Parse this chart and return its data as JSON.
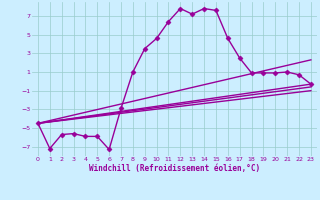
{
  "xlabel": "Windchill (Refroidissement éolien,°C)",
  "bg_color": "#cceeff",
  "line_color": "#990099",
  "grid_color": "#99cccc",
  "xlim": [
    -0.5,
    23.5
  ],
  "ylim": [
    -8,
    8.5
  ],
  "xticks": [
    0,
    1,
    2,
    3,
    4,
    5,
    6,
    7,
    8,
    9,
    10,
    11,
    12,
    13,
    14,
    15,
    16,
    17,
    18,
    19,
    20,
    21,
    22,
    23
  ],
  "yticks": [
    -7,
    -5,
    -3,
    -1,
    1,
    3,
    5,
    7
  ],
  "curve1_x": [
    0,
    1,
    2,
    3,
    4,
    5,
    6,
    7,
    8,
    9,
    10,
    11,
    12,
    13,
    14,
    15,
    16,
    17,
    18,
    19,
    20,
    21,
    22,
    23
  ],
  "curve1_y": [
    -4.5,
    -7.2,
    -5.7,
    -5.6,
    -5.9,
    -5.9,
    -7.3,
    -2.9,
    1.0,
    3.5,
    4.6,
    6.4,
    7.8,
    7.2,
    7.8,
    7.6,
    4.6,
    2.5,
    0.9,
    0.9,
    0.9,
    1.0,
    0.7,
    -0.3
  ],
  "line1_x": [
    0,
    23
  ],
  "line1_y": [
    -4.5,
    2.3
  ],
  "line2_x": [
    0,
    23
  ],
  "line2_y": [
    -4.5,
    -0.3
  ],
  "line3_x": [
    0,
    23
  ],
  "line3_y": [
    -4.5,
    -0.6
  ],
  "line4_x": [
    0,
    23
  ],
  "line4_y": [
    -4.5,
    -1.0
  ],
  "marker": "D",
  "markersize": 2.5,
  "linewidth": 1.0
}
